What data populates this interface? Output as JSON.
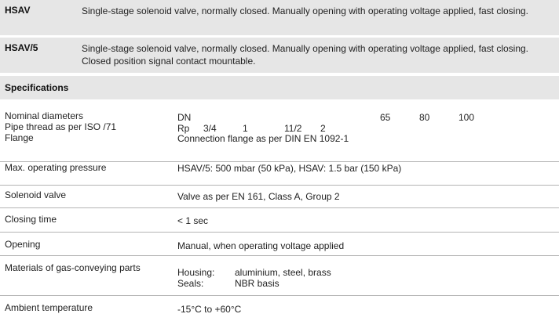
{
  "models": [
    {
      "code": "HSAV",
      "description": "Single-stage solenoid valve, normally closed. Manually opening with operating voltage applied, fast closing."
    },
    {
      "code": "HSAV/5",
      "description": "Single-stage solenoid valve, normally closed. Manually opening with operating voltage applied, fast closing. Closed position signal contact mountable."
    }
  ],
  "specifications_heading": "Specifications",
  "nominal": {
    "labels": [
      "Nominal diameters",
      "Pipe thread as per ISO /71",
      "Flange"
    ],
    "dn": {
      "label": "DN",
      "values": [
        "65",
        "80",
        "100"
      ]
    },
    "rp": {
      "label": "Rp",
      "values": [
        "3/4",
        "1",
        "11/2",
        "2"
      ]
    },
    "flange": "Connection flange as per DIN EN 1092-1"
  },
  "rows": {
    "pressure": {
      "label": "Max. operating pressure",
      "value": "HSAV/5: 500 mbar (50 kPa), HSAV: 1.5 bar (150 kPa)"
    },
    "solenoid": {
      "label": "Solenoid valve",
      "value": "Valve as per EN 161, Class A, Group 2"
    },
    "closing": {
      "label": "Closing time",
      "value": "< 1 sec"
    },
    "opening": {
      "label": "Opening",
      "value": "Manual, when operating voltage applied"
    },
    "materials": {
      "label": "Materials of gas-conveying parts",
      "housing_label": "Housing:",
      "housing_value": "aluminium, steel, brass",
      "seals_label": "Seals:",
      "seals_value": "NBR basis"
    },
    "ambient": {
      "label": "Ambient temperature",
      "value": "-15°C to +60°C"
    }
  }
}
